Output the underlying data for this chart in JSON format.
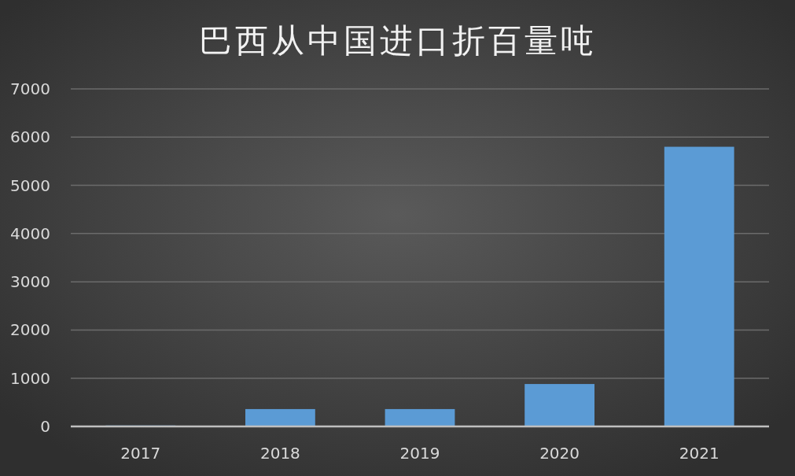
{
  "chart_data": {
    "type": "bar",
    "title": "巴西从中国进口折百量吨",
    "categories": [
      "2017",
      "2018",
      "2019",
      "2020",
      "2021"
    ],
    "values": [
      20,
      360,
      360,
      880,
      5800
    ],
    "color": "#5b9bd5",
    "ylim": [
      0,
      7000
    ],
    "yticks": [
      0,
      1000,
      2000,
      3000,
      4000,
      5000,
      6000,
      7000
    ],
    "grid": "y"
  }
}
